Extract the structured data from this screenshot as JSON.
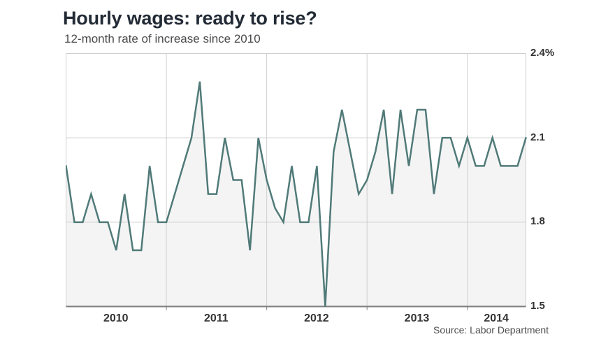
{
  "header": {
    "title": "Hourly wages: ready to rise?",
    "subtitle": "12-month rate of increase since 2010"
  },
  "source": {
    "label": "Source: Labor Department"
  },
  "chart_data": {
    "type": "line",
    "title": "Hourly wages: ready to rise?",
    "subtitle": "12-month rate of increase since 2010",
    "unit": "percent",
    "frequency": "monthly",
    "start_year": 2010,
    "values": [
      2.0,
      1.8,
      1.8,
      1.9,
      1.8,
      1.8,
      1.7,
      1.9,
      1.7,
      1.7,
      2.0,
      1.8,
      1.8,
      1.9,
      2.0,
      2.1,
      2.3,
      1.9,
      1.9,
      2.1,
      1.95,
      1.95,
      1.7,
      2.1,
      1.95,
      1.85,
      1.8,
      2.0,
      1.8,
      1.8,
      2.0,
      1.5,
      2.05,
      2.2,
      2.05,
      1.9,
      1.95,
      2.05,
      2.2,
      1.9,
      2.2,
      2.0,
      2.2,
      2.2,
      1.9,
      2.1,
      2.1,
      2.0,
      2.1,
      2.0,
      2.0,
      2.1,
      2.0,
      2.0,
      2.0,
      2.1
    ],
    "year_boundaries": [
      12,
      24,
      36,
      48
    ],
    "xticks": [
      "2010",
      "2011",
      "2012",
      "2013",
      "2014"
    ],
    "yticks": [
      {
        "value": 2.4,
        "label": "2.4%"
      },
      {
        "value": 2.1,
        "label": "2.1"
      },
      {
        "value": 1.8,
        "label": "1.8"
      },
      {
        "value": 1.5,
        "label": "1.5"
      }
    ],
    "ylim": [
      1.5,
      2.4
    ],
    "grid": true,
    "legend": "none",
    "colors": {
      "line": "#507a78",
      "area_fill": "#f4f4f4",
      "grid": "#cfcfcf",
      "axis": "#7d7d7d"
    }
  }
}
